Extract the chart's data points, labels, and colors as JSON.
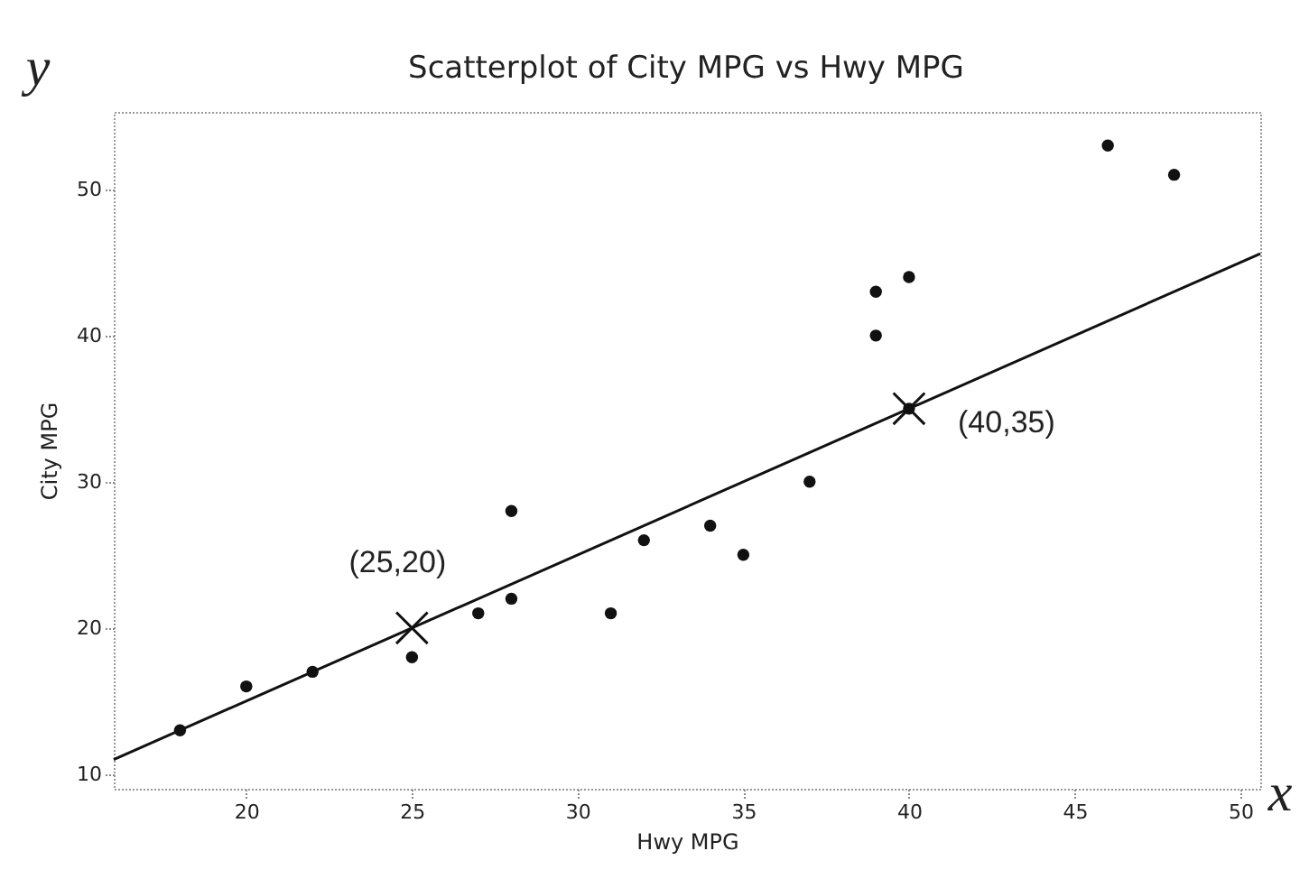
{
  "chart_data": {
    "type": "scatter",
    "title": "Scatterplot of City MPG vs Hwy MPG",
    "xlabel": "Hwy MPG",
    "ylabel": "City MPG",
    "xlim": [
      16,
      50.6
    ],
    "ylim": [
      9,
      55.3
    ],
    "xticks": [
      20,
      25,
      30,
      35,
      40,
      45,
      50
    ],
    "yticks": [
      10,
      20,
      30,
      40,
      50
    ],
    "grid": false,
    "series": [
      {
        "type": "scatter",
        "marker": "circle",
        "color": "#111111",
        "x": [
          18,
          20,
          22,
          25,
          27,
          28,
          28,
          31,
          32,
          34,
          35,
          37,
          39,
          39,
          40,
          40,
          46,
          48
        ],
        "values": [
          13,
          16,
          17,
          18,
          21,
          28,
          22,
          21,
          26,
          27,
          25,
          30,
          40,
          43,
          44,
          35,
          53,
          51
        ]
      },
      {
        "type": "line",
        "color": "#111111",
        "line_style": "solid",
        "x": [
          16,
          50.6
        ],
        "values": [
          11,
          45.6
        ]
      },
      {
        "type": "scatter",
        "marker": "cross",
        "color": "#111111",
        "x": [
          25,
          40
        ],
        "values": [
          20,
          35
        ]
      }
    ],
    "annotations": [
      {
        "text": "(25,20)",
        "x": 25,
        "y": 20
      },
      {
        "text": "(40,35)",
        "x": 40,
        "y": 35
      },
      "y",
      "x"
    ]
  }
}
